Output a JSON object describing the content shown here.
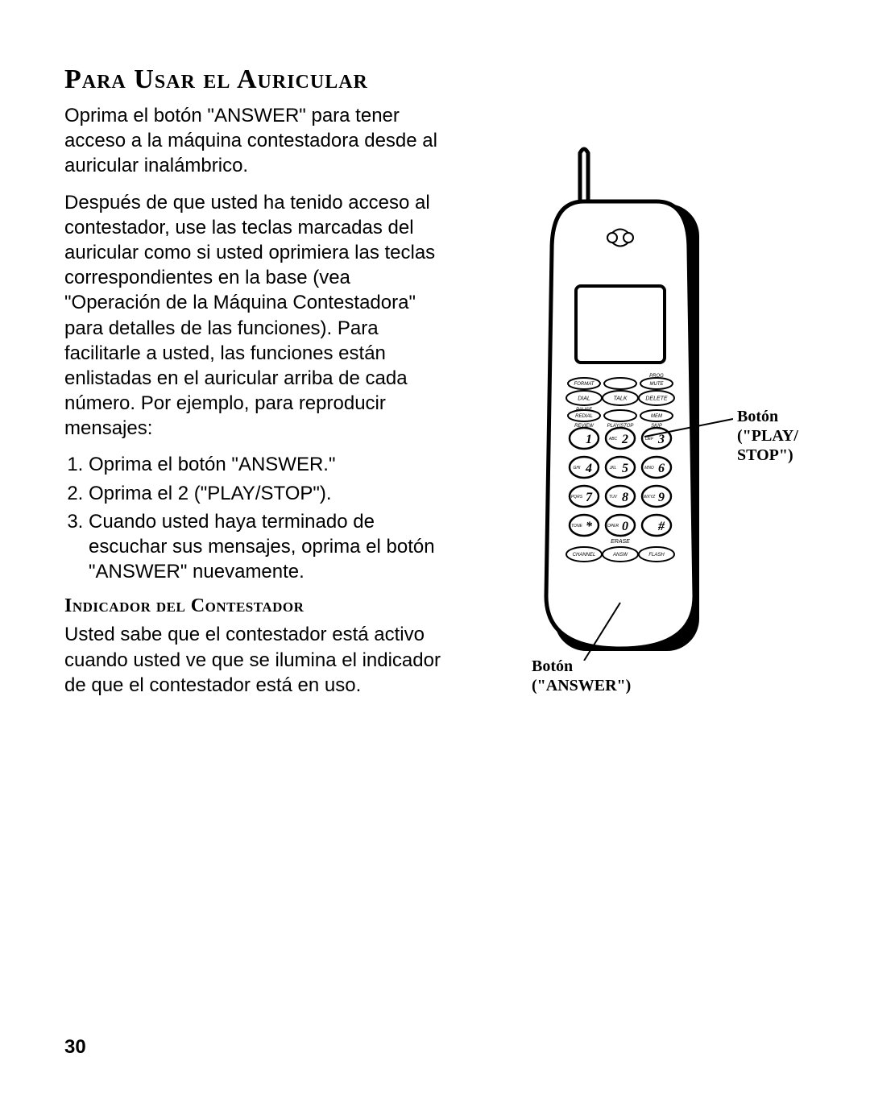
{
  "title": "Para Usar el Auricular",
  "para1": "Oprima el botón \"ANSWER\" para tener acceso a la máquina contestadora desde al auricular inalámbrico.",
  "para2": "Después de que usted ha tenido acceso al contestador, use las teclas marcadas del auricular como si usted oprimiera las teclas correspondientes en la base (vea \"Operación de la Máquina Contestadora\" para detalles de las funciones). Para facilitarle a usted, las funciones están enlistadas en el auricular arriba de cada número. Por ejemplo, para reproducir mensajes:",
  "steps": {
    "s1": "Oprima el botón \"ANSWER.\"",
    "s2": "Oprima el 2 (\"PLAY/STOP\").",
    "s3": "Cuando usted haya terminado de escuchar sus mensajes, oprima el botón \"ANSWER\" nuevamente."
  },
  "subheading": "Indicador del Contestador",
  "para3": "Usted sabe que el contestador está activo cuando usted ve que se ilumina el indicador de que el contestador está en uso.",
  "page_number": "30",
  "callouts": {
    "playstop_line1": "Botón",
    "playstop_line2": "(\"PLAY/",
    "playstop_line3": "STOP\")",
    "answer_line1": "Botón",
    "answer_line2": "(\"ANSWER\")"
  },
  "phone": {
    "stroke": "#000000",
    "fill_body": "#ffffff",
    "shadow": "#000000",
    "row_top_labels": [
      "FORMAT",
      "",
      "MUTE"
    ],
    "pre_row_label_top": "PROG",
    "row_mid_labels": [
      "DIAL",
      "TALK",
      "DELETE"
    ],
    "row_lo_labels": [
      "REDIAL",
      "",
      "MEM"
    ],
    "pre_row_label_mid": "PAUSE",
    "sub_labels": [
      "REVIEW",
      "PLAY/STOP",
      "SKIP"
    ],
    "keys": [
      {
        "d": "1",
        "l": ""
      },
      {
        "d": "2",
        "l": "ABC"
      },
      {
        "d": "3",
        "l": "DEF"
      },
      {
        "d": "4",
        "l": "GHI"
      },
      {
        "d": "5",
        "l": "JKL"
      },
      {
        "d": "6",
        "l": "MNO"
      },
      {
        "d": "7",
        "l": "PQRS"
      },
      {
        "d": "8",
        "l": "TUV"
      },
      {
        "d": "9",
        "l": "WXYZ"
      },
      {
        "d": "*",
        "l": "TONE"
      },
      {
        "d": "0",
        "l": "OPER"
      },
      {
        "d": "#",
        "l": ""
      }
    ],
    "erase_label": "ERASE",
    "bottom_row": [
      "CHANNEL",
      "ANSW",
      "FLASH"
    ]
  },
  "colors": {
    "text": "#000000",
    "background": "#ffffff"
  }
}
